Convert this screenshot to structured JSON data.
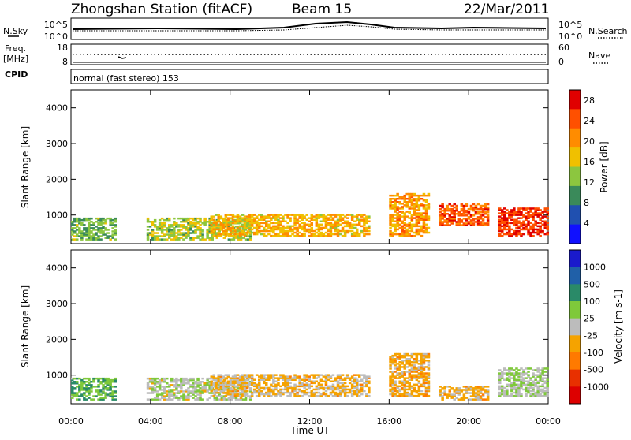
{
  "header": {
    "station": "Zhongshan Station (fitACF)",
    "beam": "Beam 15",
    "date": "22/Mar/2011"
  },
  "noise_panel": {
    "left_label": "N.Sky",
    "right_label": "N.Search",
    "left_ticks": [
      "10^5",
      "10^0"
    ],
    "right_ticks": [
      "10^5",
      "10^0"
    ]
  },
  "freq_panel": {
    "left_label_1": "Freq.",
    "left_label_2": "[MHz]",
    "right_label": "Nave",
    "left_ticks": [
      "18",
      "8"
    ],
    "right_ticks": [
      "60",
      "0"
    ]
  },
  "cpid": {
    "label": "CPID",
    "text": "normal (fast stereo) 153"
  },
  "colors": {
    "power_scale": [
      "#1010ff",
      "#2050b0",
      "#3a8a5a",
      "#8cc63f",
      "#f0c000",
      "#ff8c00",
      "#ff5000",
      "#e00000"
    ],
    "velocity_scale": [
      "#1a1acc",
      "#2060a8",
      "#2a8a68",
      "#7fc93a",
      "#bcbcbc",
      "#f5a300",
      "#ff7a00",
      "#e83000",
      "#dd0000"
    ]
  },
  "chart_data": [
    {
      "type": "heatmap",
      "parameter": "power",
      "ylabel": "Slant Range [km]",
      "x_ticks": [
        "00:00",
        "04:00",
        "08:00",
        "12:00",
        "16:00",
        "20:00",
        "00:00"
      ],
      "y_ticks": [
        "1000",
        "2000",
        "3000",
        "4000"
      ],
      "ylim": [
        200,
        4500
      ],
      "colorbar": {
        "label": "Power [dB]",
        "ticks": [
          "4",
          "8",
          "12",
          "16",
          "20",
          "24",
          "28"
        ],
        "range": [
          0,
          30
        ]
      },
      "echo_regions": [
        {
          "t_start": 0.0,
          "t_end": 2.2,
          "r_min": 300,
          "r_max": 900,
          "level": 12
        },
        {
          "t_start": 3.8,
          "t_end": 9.0,
          "r_min": 300,
          "r_max": 900,
          "level": 14
        },
        {
          "t_start": 7.0,
          "t_end": 15.0,
          "r_min": 400,
          "r_max": 1000,
          "level": 18
        },
        {
          "t_start": 16.0,
          "t_end": 18.0,
          "r_min": 400,
          "r_max": 1600,
          "level": 20
        },
        {
          "t_start": 18.5,
          "t_end": 21.0,
          "r_min": 700,
          "r_max": 1300,
          "level": 24
        },
        {
          "t_start": 21.5,
          "t_end": 24.0,
          "r_min": 400,
          "r_max": 1200,
          "level": 26
        }
      ]
    },
    {
      "type": "heatmap",
      "parameter": "velocity",
      "ylabel": "Slant Range [km]",
      "xlabel": "Time UT",
      "x_ticks": [
        "00:00",
        "04:00",
        "08:00",
        "12:00",
        "16:00",
        "20:00",
        "00:00"
      ],
      "y_ticks": [
        "1000",
        "2000",
        "3000",
        "4000"
      ],
      "ylim": [
        200,
        4500
      ],
      "colorbar": {
        "label": "Velocity [m s-1]",
        "ticks": [
          "1000",
          "500",
          "100",
          "25",
          "-25",
          "-100",
          "-500",
          "-1000"
        ],
        "range": [
          -1000,
          1000
        ]
      },
      "echo_regions": [
        {
          "t_start": 0.0,
          "t_end": 2.2,
          "r_min": 300,
          "r_max": 900,
          "level": 300
        },
        {
          "t_start": 3.8,
          "t_end": 9.0,
          "r_min": 300,
          "r_max": 900,
          "level": 50
        },
        {
          "t_start": 7.0,
          "t_end": 15.0,
          "r_min": 400,
          "r_max": 1000,
          "level": -150
        },
        {
          "t_start": 16.0,
          "t_end": 18.0,
          "r_min": 400,
          "r_max": 1600,
          "level": -200
        },
        {
          "t_start": 18.5,
          "t_end": 21.0,
          "r_min": 300,
          "r_max": 700,
          "level": -150
        },
        {
          "t_start": 21.5,
          "t_end": 24.0,
          "r_min": 400,
          "r_max": 1200,
          "level": 100
        }
      ]
    }
  ]
}
